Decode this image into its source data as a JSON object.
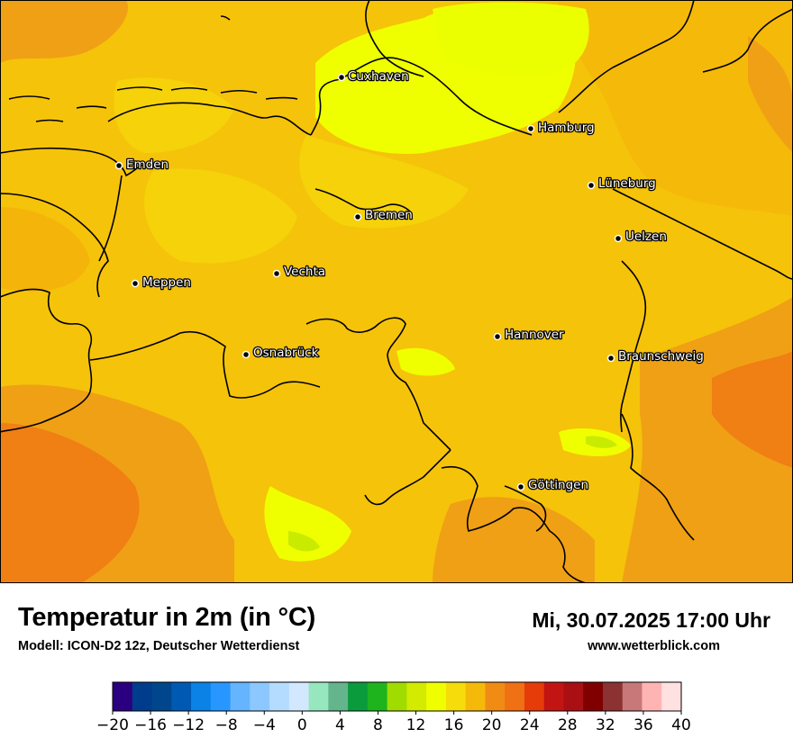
{
  "map": {
    "cities": [
      {
        "name": "Cuxhaven",
        "x": 8.69,
        "y": 53.86
      },
      {
        "name": "Hamburg",
        "x": 10.0,
        "y": 53.55
      },
      {
        "name": "Emden",
        "x": 7.21,
        "y": 53.37
      },
      {
        "name": "Lüneburg",
        "x": 10.41,
        "y": 53.25
      },
      {
        "name": "Bremen",
        "x": 8.81,
        "y": 53.08
      },
      {
        "name": "Uelzen",
        "x": 10.56,
        "y": 52.96
      },
      {
        "name": "Vechta",
        "x": 8.29,
        "y": 52.73
      },
      {
        "name": "Meppen",
        "x": 7.3,
        "y": 52.69
      },
      {
        "name": "Hannover",
        "x": 9.74,
        "y": 52.37
      },
      {
        "name": "Osnabrück",
        "x": 8.05,
        "y": 52.28
      },
      {
        "name": "Braunschweig",
        "x": 10.52,
        "y": 52.27
      },
      {
        "name": "Göttingen",
        "x": 9.93,
        "y": 51.54
      }
    ]
  },
  "footer": {
    "title": "Temperatur in 2m (in °C)",
    "model": "Modell: ICON-D2 12z, Deutscher Wetterdienst",
    "datetime": "Mi, 30.07.2025 17:00 Uhr",
    "website": "www.wetterblick.com"
  },
  "colorbar": {
    "ticks": [
      "−20",
      "−16",
      "−12",
      "−8",
      "−4",
      "0",
      "4",
      "8",
      "12",
      "16",
      "20",
      "24",
      "28",
      "32",
      "36",
      "40"
    ],
    "colors": [
      "#2a0080",
      "#003c8c",
      "#00468c",
      "#005ab4",
      "#0a82e6",
      "#2896ff",
      "#64b4ff",
      "#8cc8ff",
      "#b4dcff",
      "#d2e8ff",
      "#96e6be",
      "#64b48c",
      "#0a9b3c",
      "#1eb41e",
      "#a0dc00",
      "#d2eb00",
      "#f0ff00",
      "#f5dc0a",
      "#f5b90a",
      "#f08c14",
      "#f07014",
      "#e63c0a",
      "#c31414",
      "#aa0f14",
      "#800000",
      "#8c3232",
      "#c87878",
      "#ffb4b4",
      "#ffe1e1"
    ]
  }
}
